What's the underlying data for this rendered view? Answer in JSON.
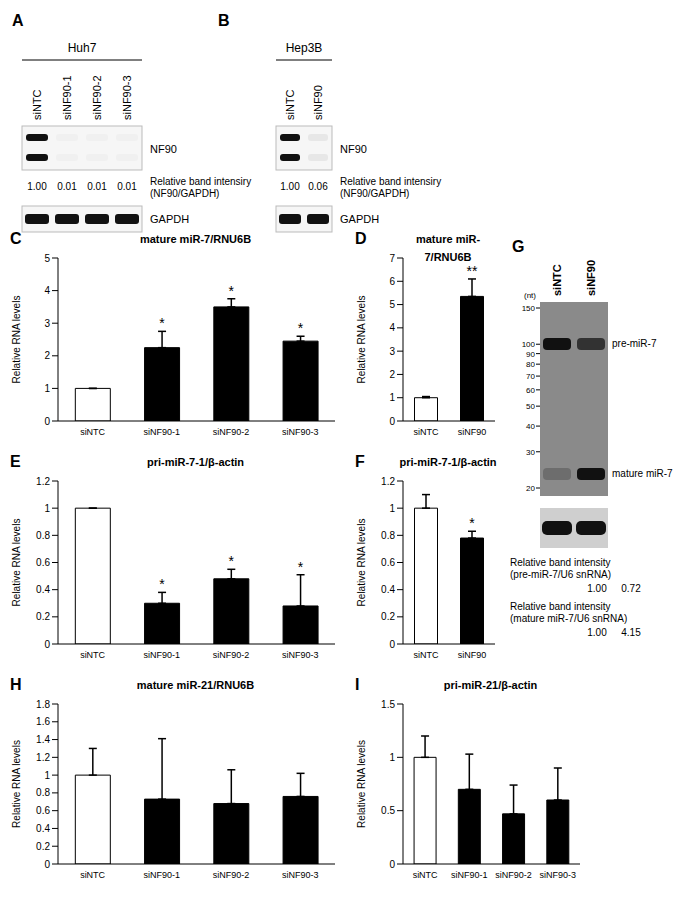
{
  "blots": [
    {
      "panel": "A",
      "title": "Huh7",
      "lanes": [
        "siNTC",
        "siNF90-1",
        "siNF90-2",
        "siNF90-3"
      ],
      "bands": [
        "NF90",
        "GAPDH"
      ],
      "intensity_label": "Relative band intensiry (NF90/GAPDH)",
      "intensities": [
        "1.00",
        "0.01",
        "0.01",
        "0.01"
      ]
    },
    {
      "panel": "B",
      "title": "Hep3B",
      "lanes": [
        "siNTC",
        "siNF90"
      ],
      "bands": [
        "NF90",
        "GAPDH"
      ],
      "intensity_label": "Relative band intensiry (NF90/GAPDH)",
      "intensities": [
        "1.00",
        "0.06"
      ]
    },
    {
      "panel": "G",
      "lanes": [
        "siNTC",
        "siNF90"
      ],
      "size_unit": "(nt)",
      "size_marks": [
        150,
        100,
        90,
        80,
        70,
        60,
        50,
        40,
        30,
        20
      ],
      "bands": [
        "pre-miR-7",
        "mature miR-7"
      ],
      "quantification": [
        {
          "label": "Relative band intensity (pre-miR-7/U6 snRNA)",
          "values": [
            "1.00",
            "0.72"
          ]
        },
        {
          "label": "Relative band intensity (mature miR-7/U6 snRNA)",
          "values": [
            "1.00",
            "4.15"
          ]
        }
      ]
    }
  ],
  "chart_data": [
    {
      "panel": "C",
      "type": "bar",
      "title": "mature miR-7/RNU6B",
      "y_label": "Relative RNA levels",
      "categories": [
        "siNTC",
        "siNF90-1",
        "siNF90-2",
        "siNF90-3"
      ],
      "values": [
        1,
        2.25,
        3.5,
        2.45
      ],
      "errors": [
        0,
        0.5,
        0.25,
        0.15
      ],
      "significance": [
        null,
        "*",
        "*",
        "*"
      ],
      "colors": [
        "#ffffff",
        "#000000",
        "#000000",
        "#000000"
      ],
      "ylim": [
        0,
        5
      ],
      "yticks": [
        0,
        1,
        2,
        3,
        4,
        5
      ]
    },
    {
      "panel": "D",
      "type": "bar",
      "title": "mature miR-7/RNU6B",
      "y_label": "Relative RNA levels",
      "categories": [
        "siNTC",
        "siNF90"
      ],
      "values": [
        1,
        5.35
      ],
      "errors": [
        0.05,
        0.75
      ],
      "significance": [
        null,
        "**"
      ],
      "colors": [
        "#ffffff",
        "#000000"
      ],
      "ylim": [
        0,
        7
      ],
      "yticks": [
        0,
        1,
        2,
        3,
        4,
        5,
        6,
        7
      ]
    },
    {
      "panel": "E",
      "type": "bar",
      "title": "pri-miR-7-1/β-actin",
      "y_label": "Relative RNA levels",
      "categories": [
        "siNTC",
        "siNF90-1",
        "siNF90-2",
        "siNF90-3"
      ],
      "values": [
        1,
        0.3,
        0.48,
        0.28
      ],
      "errors": [
        0,
        0.08,
        0.07,
        0.23
      ],
      "significance": [
        null,
        "*",
        "*",
        "*"
      ],
      "colors": [
        "#ffffff",
        "#000000",
        "#000000",
        "#000000"
      ],
      "ylim": [
        0,
        1.2
      ],
      "yticks": [
        0,
        0.2,
        0.4,
        0.6,
        0.8,
        1,
        1.2
      ]
    },
    {
      "panel": "F",
      "type": "bar",
      "title": "pri-miR-7-1/β-actin",
      "y_label": "Relative RNA levels",
      "categories": [
        "siNTC",
        "siNF90"
      ],
      "values": [
        1,
        0.78
      ],
      "errors": [
        0.1,
        0.05
      ],
      "significance": [
        null,
        "*"
      ],
      "colors": [
        "#ffffff",
        "#000000"
      ],
      "ylim": [
        0,
        1.2
      ],
      "yticks": [
        0,
        0.2,
        0.4,
        0.6,
        0.8,
        1,
        1.2
      ]
    },
    {
      "panel": "H",
      "type": "bar",
      "title": "mature miR-21/RNU6B",
      "y_label": "Relative RNA levels",
      "categories": [
        "siNTC",
        "siNF90-1",
        "siNF90-2",
        "siNF90-3"
      ],
      "values": [
        1,
        0.73,
        0.68,
        0.76
      ],
      "errors": [
        0.3,
        0.68,
        0.38,
        0.26
      ],
      "colors": [
        "#ffffff",
        "#000000",
        "#000000",
        "#000000"
      ],
      "ylim": [
        0,
        1.8
      ],
      "yticks": [
        0,
        0.2,
        0.4,
        0.6,
        0.8,
        1,
        1.2,
        1.4,
        1.6,
        1.8
      ]
    },
    {
      "panel": "I",
      "type": "bar",
      "title": "pri-miR-21/β-actin",
      "y_label": "Relative RNA levels",
      "categories": [
        "siNTC",
        "siNF90-1",
        "siNF90-2",
        "siNF90-3"
      ],
      "values": [
        1,
        0.7,
        0.47,
        0.6
      ],
      "errors": [
        0.2,
        0.33,
        0.27,
        0.3
      ],
      "colors": [
        "#ffffff",
        "#000000",
        "#000000",
        "#000000"
      ],
      "ylim": [
        0,
        1.5
      ],
      "yticks": [
        0,
        0.5,
        1,
        1.5
      ]
    }
  ]
}
